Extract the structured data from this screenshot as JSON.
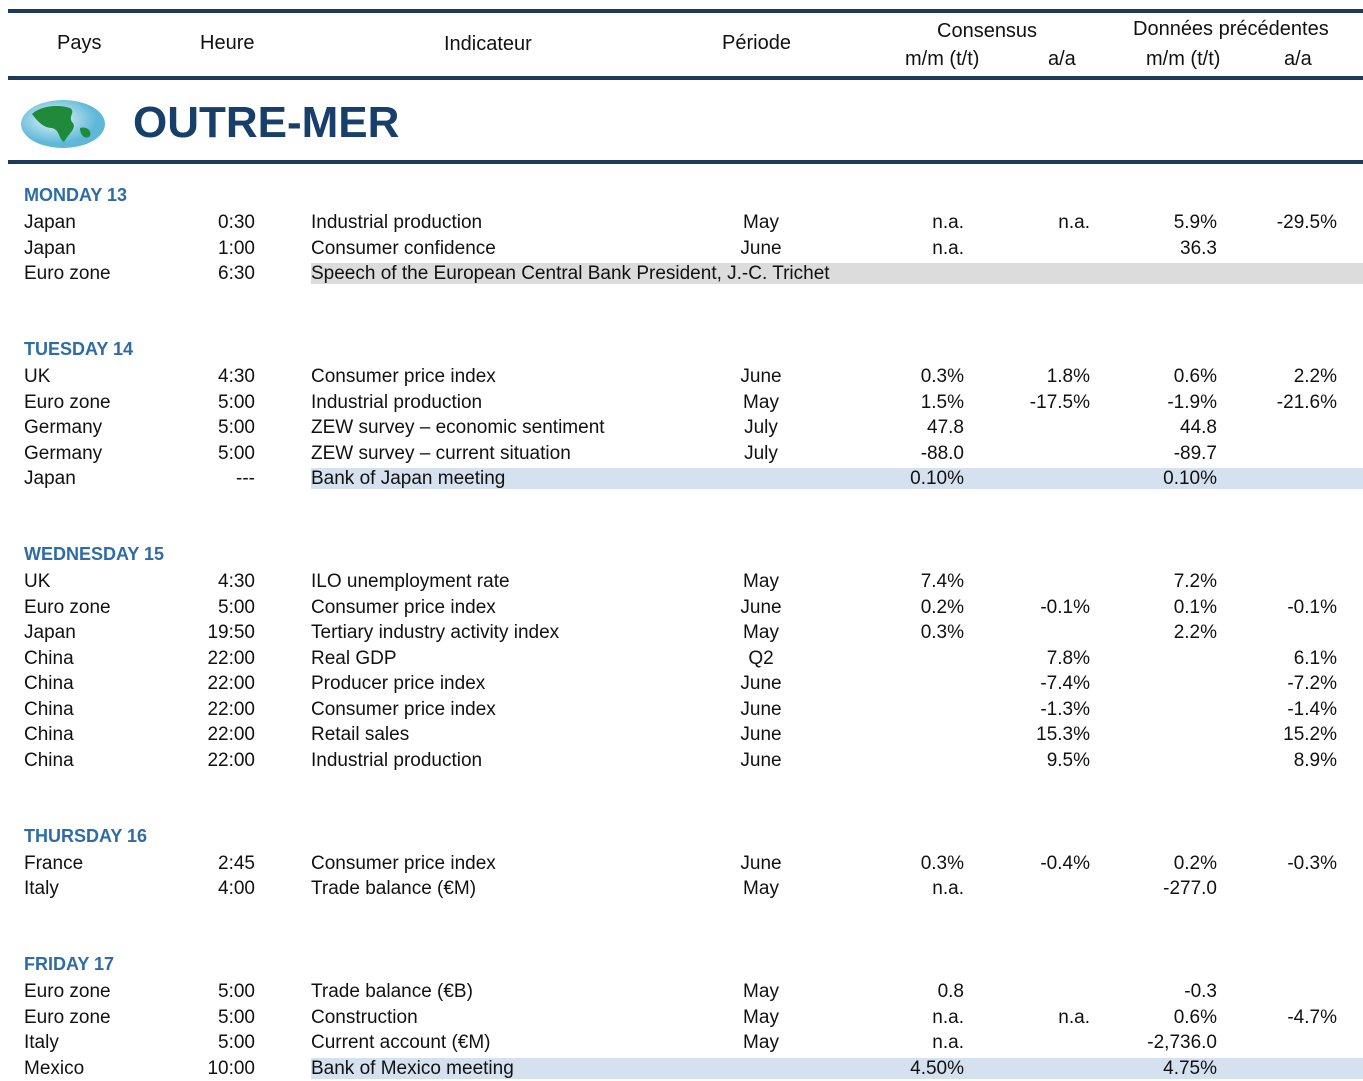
{
  "header": {
    "columns": {
      "pays": "Pays",
      "heure": "Heure",
      "indicateur": "Indicateur",
      "periode": "Période"
    },
    "consensus": {
      "title": "Consensus",
      "mm": "m/m (t/t)",
      "aa": "a/a"
    },
    "previous": {
      "title": "Données précédentes",
      "mm": "m/m (t/t)",
      "aa": "a/a"
    }
  },
  "section_title": "OUTRE-MER",
  "days": [
    {
      "label": "MONDAY 13",
      "rows": [
        {
          "cells": [
            "Japan",
            "0:30",
            "Industrial production",
            "May",
            "n.a.",
            "n.a.",
            "5.9%",
            "-29.5%"
          ]
        },
        {
          "cells": [
            "Japan",
            "1:00",
            "Consumer confidence",
            "June",
            "n.a.",
            null,
            "36.3",
            null
          ]
        },
        {
          "cells": [
            "Euro zone",
            "6:30",
            "Speech of the European Central Bank President, J.-C. Trichet",
            null,
            null,
            null,
            null,
            null
          ],
          "shade": "#dcdcdc"
        }
      ]
    },
    {
      "label": "TUESDAY 14",
      "rows": [
        {
          "cells": [
            "UK",
            "4:30",
            "Consumer price index",
            "June",
            "0.3%",
            "1.8%",
            "0.6%",
            "2.2%"
          ]
        },
        {
          "cells": [
            "Euro zone",
            "5:00",
            "Industrial production",
            "May",
            "1.5%",
            "-17.5%",
            "-1.9%",
            "-21.6%"
          ]
        },
        {
          "cells": [
            "Germany",
            "5:00",
            "ZEW survey – economic sentiment",
            "July",
            "47.8",
            null,
            "44.8",
            null
          ]
        },
        {
          "cells": [
            "Germany",
            "5:00",
            "ZEW survey – current situation",
            "July",
            "-88.0",
            null,
            "-89.7",
            null
          ]
        },
        {
          "cells": [
            "Japan",
            "---",
            "Bank of Japan meeting",
            null,
            "0.10%",
            null,
            "0.10%",
            null
          ],
          "shade": "#d5e1ee"
        }
      ]
    },
    {
      "label": "WEDNESDAY 15",
      "rows": [
        {
          "cells": [
            "UK",
            "4:30",
            "ILO unemployment rate",
            "May",
            "7.4%",
            null,
            "7.2%",
            null
          ]
        },
        {
          "cells": [
            "Euro zone",
            "5:00",
            "Consumer price index",
            "June",
            "0.2%",
            "-0.1%",
            "0.1%",
            "-0.1%"
          ]
        },
        {
          "cells": [
            "Japan",
            "19:50",
            "Tertiary industry activity index",
            "May",
            "0.3%",
            null,
            "2.2%",
            null
          ]
        },
        {
          "cells": [
            "China",
            "22:00",
            "Real GDP",
            "Q2",
            null,
            "7.8%",
            null,
            "6.1%"
          ]
        },
        {
          "cells": [
            "China",
            "22:00",
            "Producer price index",
            "June",
            null,
            "-7.4%",
            null,
            "-7.2%"
          ]
        },
        {
          "cells": [
            "China",
            "22:00",
            "Consumer price index",
            "June",
            null,
            "-1.3%",
            null,
            "-1.4%"
          ]
        },
        {
          "cells": [
            "China",
            "22:00",
            "Retail sales",
            "June",
            null,
            "15.3%",
            null,
            "15.2%"
          ]
        },
        {
          "cells": [
            "China",
            "22:00",
            "Industrial production",
            "June",
            null,
            "9.5%",
            null,
            "8.9%"
          ]
        }
      ]
    },
    {
      "label": "THURSDAY 16",
      "rows": [
        {
          "cells": [
            "France",
            "2:45",
            "Consumer price index",
            "June",
            "0.3%",
            "-0.4%",
            "0.2%",
            "-0.3%"
          ]
        },
        {
          "cells": [
            "Italy",
            "4:00",
            "Trade balance (€M)",
            "May",
            "n.a.",
            null,
            "-277.0",
            null
          ]
        }
      ]
    },
    {
      "label": "FRIDAY 17",
      "rows": [
        {
          "cells": [
            "Euro zone",
            "5:00",
            "Trade balance (€B)",
            "May",
            "0.8",
            null,
            "-0.3",
            null
          ]
        },
        {
          "cells": [
            "Euro zone",
            "5:00",
            "Construction",
            "May",
            "n.a.",
            "n.a.",
            "0.6%",
            "-4.7%"
          ]
        },
        {
          "cells": [
            "Italy",
            "5:00",
            "Current account (€M)",
            "May",
            "n.a.",
            null,
            "-2,736.0",
            null
          ]
        },
        {
          "cells": [
            "Mexico",
            "10:00",
            "Bank of Mexico meeting",
            null,
            "4.50%",
            null,
            "4.75%",
            null
          ],
          "shade": "#d5e1ee"
        }
      ]
    }
  ]
}
